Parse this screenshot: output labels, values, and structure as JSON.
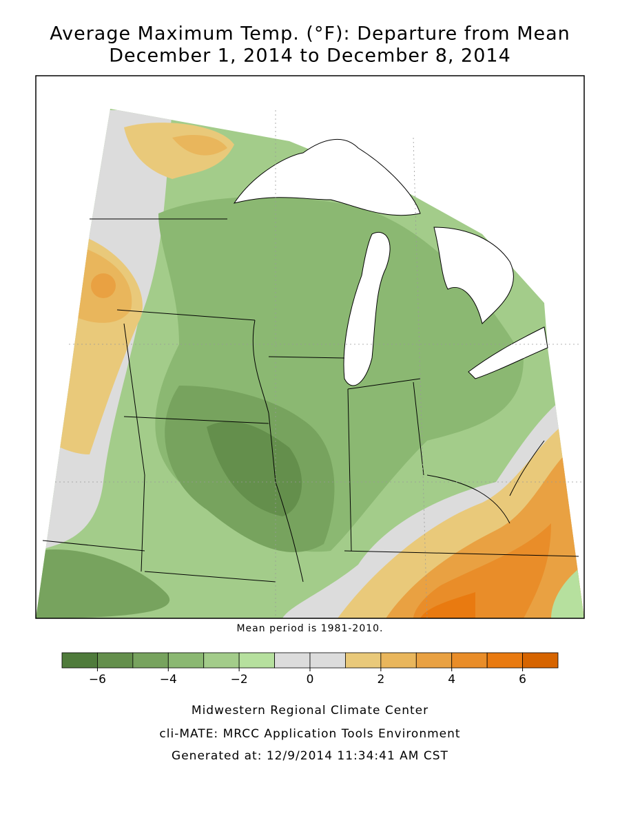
{
  "header": {
    "title_lines": [
      "Average Maximum Temp. (°F): Departure from Mean",
      "December 1, 2014 to December 8, 2014"
    ]
  },
  "map": {
    "note": "Mean period is 1981-2010."
  },
  "legend": {
    "bins": [
      -7,
      -6,
      -5,
      -4,
      -3,
      -2,
      -1,
      0,
      1,
      2,
      3,
      4,
      5,
      6,
      7
    ],
    "colors": [
      "#4f7b3b",
      "#648f4c",
      "#77a35e",
      "#8bb872",
      "#a3cc8a",
      "#b6e09e",
      "#dcdcdc",
      "#dcdcdc",
      "#e9c97a",
      "#e9b65c",
      "#e9a142",
      "#e98d29",
      "#e97a10",
      "#d66400"
    ],
    "ticks": [
      {
        "value": -6,
        "label": "−6"
      },
      {
        "value": -4,
        "label": "−4"
      },
      {
        "value": -2,
        "label": "−2"
      },
      0,
      2,
      4,
      6
    ]
  },
  "footer": {
    "lines": [
      "Midwestern Regional Climate Center",
      "cli-MATE: MRCC Application Tools Environment",
      "Generated at: 12/9/2014 11:34:41 AM CST"
    ]
  }
}
